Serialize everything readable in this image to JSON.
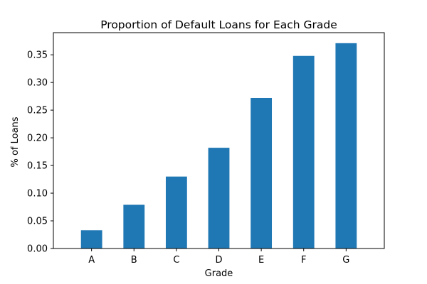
{
  "chart_data": {
    "type": "bar",
    "title": "Proportion of Default Loans for Each Grade",
    "xlabel": "Grade",
    "ylabel": "% of Loans",
    "categories": [
      "A",
      "B",
      "C",
      "D",
      "E",
      "F",
      "G"
    ],
    "values": [
      0.033,
      0.079,
      0.13,
      0.182,
      0.272,
      0.348,
      0.371
    ],
    "ylim": [
      0,
      0.39
    ],
    "yticks": [
      "0.00",
      "0.05",
      "0.10",
      "0.15",
      "0.20",
      "0.25",
      "0.30",
      "0.35"
    ],
    "bar_color": "#1f77b4",
    "grid": false,
    "legend": "none"
  }
}
